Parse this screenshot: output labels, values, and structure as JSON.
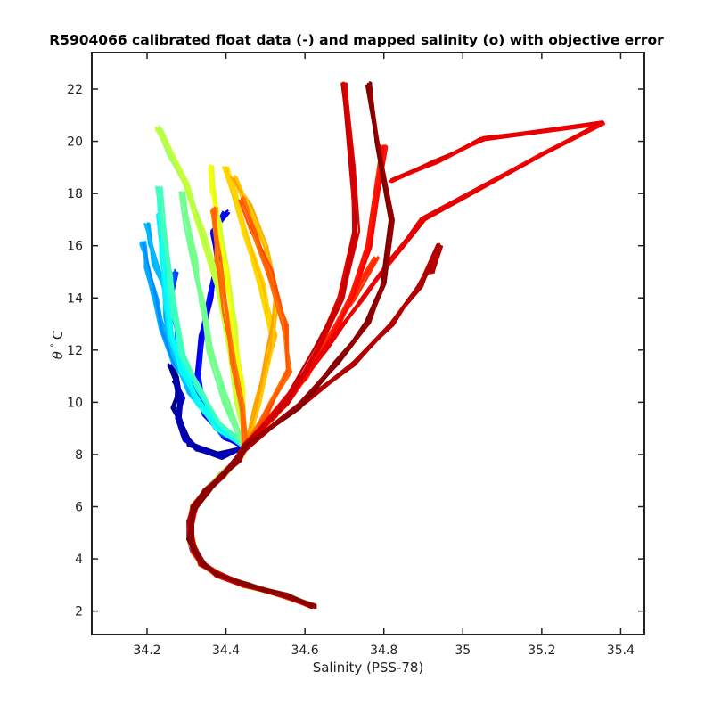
{
  "chart_data": {
    "type": "line",
    "title": "R5904066 calibrated float data (-) and mapped salinity (o) with objective error",
    "xlabel": "Salinity (PSS-78)",
    "ylabel_symbol": "θ",
    "ylabel_degree": "°",
    "ylabel_unit": "C",
    "xlim": [
      34.06,
      35.46
    ],
    "ylim": [
      1.1,
      23.4
    ],
    "xticks": [
      34.2,
      34.4,
      34.6,
      34.8,
      35,
      35.2,
      35.4
    ],
    "xtick_labels": [
      "34.2",
      "34.4",
      "34.6",
      "34.8",
      "35",
      "35.2",
      "35.4"
    ],
    "yticks": [
      2,
      4,
      6,
      8,
      10,
      12,
      14,
      16,
      18,
      20,
      22
    ],
    "ytick_labels": [
      "2",
      "4",
      "6",
      "8",
      "10",
      "12",
      "14",
      "16",
      "18",
      "20",
      "22"
    ],
    "grid": false,
    "colormap": "jet",
    "colormap_stops": [
      "#000080",
      "#0000ff",
      "#0080ff",
      "#00ffff",
      "#80ff80",
      "#ffff00",
      "#ff8000",
      "#ff0000",
      "#800000"
    ],
    "deep_profile": {
      "salinity": [
        34.62,
        34.55,
        34.45,
        34.38,
        34.34,
        34.32,
        34.31,
        34.31,
        34.32,
        34.35,
        34.39,
        34.43,
        34.45
      ],
      "theta": [
        2.2,
        2.6,
        3.0,
        3.4,
        3.8,
        4.3,
        4.8,
        5.4,
        6.0,
        6.6,
        7.2,
        7.8,
        8.3
      ]
    },
    "upper_profiles": [
      {
        "color_index": 0.02,
        "salinity": [
          34.45,
          34.38,
          34.31,
          34.29,
          34.27,
          34.28,
          34.27,
          34.26
        ],
        "theta": [
          8.3,
          8.0,
          8.4,
          9.0,
          9.8,
          10.4,
          11.0,
          11.4
        ]
      },
      {
        "color_index": 0.05,
        "salinity": [
          34.45,
          34.39,
          34.33,
          34.3,
          34.28,
          34.29,
          34.27
        ],
        "theta": [
          8.3,
          7.9,
          8.2,
          8.6,
          9.4,
          10.2,
          10.8
        ]
      },
      {
        "color_index": 0.12,
        "salinity": [
          34.45,
          34.4,
          34.35,
          34.33,
          34.34,
          34.36,
          34.38,
          34.37,
          34.4
        ],
        "theta": [
          8.3,
          8.6,
          9.5,
          11.0,
          12.5,
          14.0,
          15.5,
          16.5,
          17.3
        ]
      },
      {
        "color_index": 0.2,
        "salinity": [
          34.45,
          34.39,
          34.34,
          34.3,
          34.28,
          34.27,
          34.26,
          34.27
        ],
        "theta": [
          8.3,
          8.8,
          9.8,
          11.0,
          12.2,
          13.3,
          14.3,
          15.0
        ]
      },
      {
        "color_index": 0.28,
        "salinity": [
          34.45,
          34.38,
          34.32,
          34.27,
          34.24,
          34.22,
          34.2,
          34.19
        ],
        "theta": [
          8.3,
          9.0,
          10.2,
          11.5,
          12.8,
          14.0,
          15.2,
          16.1
        ]
      },
      {
        "color_index": 0.3,
        "salinity": [
          34.45,
          34.37,
          34.31,
          34.27,
          34.25,
          34.24,
          34.22,
          34.21,
          34.2
        ],
        "theta": [
          8.3,
          9.2,
          10.4,
          11.8,
          13.2,
          14.4,
          15.3,
          16.0,
          16.8
        ]
      },
      {
        "color_index": 0.38,
        "salinity": [
          34.45,
          34.38,
          34.33,
          34.29,
          34.26,
          34.25,
          34.24,
          34.23
        ],
        "theta": [
          8.3,
          9.0,
          10.0,
          11.2,
          12.5,
          14.0,
          15.6,
          17.2
        ]
      },
      {
        "color_index": 0.42,
        "salinity": [
          34.45,
          34.38,
          34.33,
          34.29,
          34.27,
          34.26,
          34.24,
          34.23
        ],
        "theta": [
          8.3,
          9.2,
          10.5,
          11.8,
          13.3,
          14.8,
          16.5,
          18.2
        ]
      },
      {
        "color_index": 0.5,
        "salinity": [
          34.45,
          34.4,
          34.36,
          34.34,
          34.32,
          34.3,
          34.29
        ],
        "theta": [
          8.3,
          10.0,
          12.0,
          13.8,
          15.5,
          17.0,
          18.0
        ]
      },
      {
        "color_index": 0.55,
        "salinity": [
          34.45,
          34.43,
          34.41,
          34.38,
          34.34,
          34.3,
          34.26,
          34.23
        ],
        "theta": [
          8.3,
          10.0,
          12.0,
          14.5,
          16.5,
          18.3,
          19.5,
          20.5
        ]
      },
      {
        "color_index": 0.6,
        "salinity": [
          34.45,
          34.44,
          34.42,
          34.4,
          34.38,
          34.37,
          34.36
        ],
        "theta": [
          8.3,
          10.5,
          13.0,
          15.0,
          16.8,
          18.0,
          19.0
        ]
      },
      {
        "color_index": 0.68,
        "salinity": [
          34.45,
          34.48,
          34.52,
          34.49,
          34.45,
          34.42,
          34.4
        ],
        "theta": [
          8.3,
          10.0,
          12.5,
          14.5,
          16.5,
          18.0,
          19.0
        ]
      },
      {
        "color_index": 0.7,
        "salinity": [
          34.45,
          34.48,
          34.51,
          34.53,
          34.5,
          34.46,
          34.42
        ],
        "theta": [
          8.3,
          10.0,
          12.0,
          14.0,
          16.0,
          17.5,
          18.6
        ]
      },
      {
        "color_index": 0.75,
        "salinity": [
          34.45,
          34.44,
          34.42,
          34.4,
          34.38,
          34.37
        ],
        "theta": [
          8.3,
          9.8,
          11.5,
          13.5,
          15.5,
          17.4
        ]
      },
      {
        "color_index": 0.78,
        "salinity": [
          34.45,
          34.5,
          34.56,
          34.55,
          34.51,
          34.47,
          34.44
        ],
        "theta": [
          8.3,
          9.5,
          11.2,
          13.0,
          15.0,
          16.5,
          17.8
        ]
      },
      {
        "color_index": 0.82,
        "salinity": [
          34.45,
          34.52,
          34.6,
          34.66,
          34.72,
          34.78
        ],
        "theta": [
          8.3,
          9.5,
          11.0,
          12.5,
          14.0,
          15.5
        ]
      },
      {
        "color_index": 0.86,
        "salinity": [
          34.45,
          34.52,
          34.6,
          34.67,
          34.72,
          34.76,
          34.78,
          34.8
        ],
        "theta": [
          8.3,
          9.5,
          11.0,
          12.5,
          14.0,
          16.0,
          18.0,
          19.8
        ]
      },
      {
        "color_index": 0.9,
        "salinity": [
          34.45,
          34.55,
          34.65,
          34.75,
          34.82,
          34.9,
          35.2,
          35.35,
          35.05,
          34.93,
          34.82
        ],
        "theta": [
          8.3,
          10.0,
          12.0,
          14.0,
          15.5,
          17.0,
          19.5,
          20.7,
          20.1,
          19.2,
          18.5
        ]
      },
      {
        "color_index": 0.92,
        "salinity": [
          34.45,
          34.55,
          34.63,
          34.69,
          34.73,
          34.72,
          34.7
        ],
        "theta": [
          8.3,
          10.0,
          12.0,
          14.0,
          16.5,
          19.0,
          22.2
        ]
      },
      {
        "color_index": 0.96,
        "salinity": [
          34.45,
          34.6,
          34.72,
          34.82,
          34.89,
          34.94,
          34.92
        ],
        "theta": [
          8.3,
          10.0,
          11.5,
          13.0,
          14.5,
          16.0,
          15.0
        ]
      },
      {
        "color_index": 0.99,
        "salinity": [
          34.45,
          34.58,
          34.68,
          34.76,
          34.8,
          34.82,
          34.78,
          34.76
        ],
        "theta": [
          8.3,
          9.8,
          11.5,
          13.0,
          14.5,
          17.0,
          20.0,
          22.2
        ]
      }
    ]
  }
}
